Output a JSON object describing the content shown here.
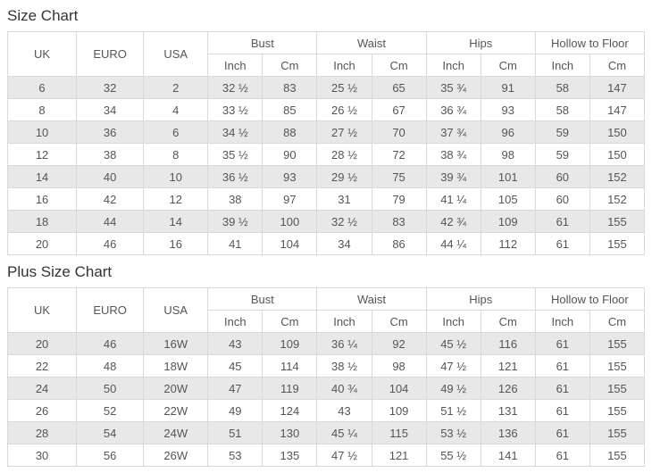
{
  "size_chart": {
    "title": "Size Chart",
    "header": {
      "uk": "UK",
      "euro": "EURO",
      "usa": "USA",
      "groups": [
        "Bust",
        "Waist",
        "Hips",
        "Hollow to Floor"
      ],
      "units": [
        "Inch",
        "Cm"
      ]
    },
    "rows": [
      [
        "6",
        "32",
        "2",
        "32 ½",
        "83",
        "25 ½",
        "65",
        "35 ¾",
        "91",
        "58",
        "147"
      ],
      [
        "8",
        "34",
        "4",
        "33 ½",
        "85",
        "26 ½",
        "67",
        "36 ¾",
        "93",
        "58",
        "147"
      ],
      [
        "10",
        "36",
        "6",
        "34 ½",
        "88",
        "27 ½",
        "70",
        "37 ¾",
        "96",
        "59",
        "150"
      ],
      [
        "12",
        "38",
        "8",
        "35 ½",
        "90",
        "28 ½",
        "72",
        "38 ¾",
        "98",
        "59",
        "150"
      ],
      [
        "14",
        "40",
        "10",
        "36 ½",
        "93",
        "29 ½",
        "75",
        "39 ¾",
        "101",
        "60",
        "152"
      ],
      [
        "16",
        "42",
        "12",
        "38",
        "97",
        "31",
        "79",
        "41 ¼",
        "105",
        "60",
        "152"
      ],
      [
        "18",
        "44",
        "14",
        "39 ½",
        "100",
        "32 ½",
        "83",
        "42 ¾",
        "109",
        "61",
        "155"
      ],
      [
        "20",
        "46",
        "16",
        "41",
        "104",
        "34",
        "86",
        "44 ¼",
        "112",
        "61",
        "155"
      ]
    ]
  },
  "plus_size_chart": {
    "title": "Plus Size Chart",
    "header": {
      "uk": "UK",
      "euro": "EURO",
      "usa": "USA",
      "groups": [
        "Bust",
        "Waist",
        "Hips",
        "Hollow to Floor"
      ],
      "units": [
        "Inch",
        "Cm"
      ]
    },
    "rows": [
      [
        "20",
        "46",
        "16W",
        "43",
        "109",
        "36 ¼",
        "92",
        "45 ½",
        "116",
        "61",
        "155"
      ],
      [
        "22",
        "48",
        "18W",
        "45",
        "114",
        "38 ½",
        "98",
        "47 ½",
        "121",
        "61",
        "155"
      ],
      [
        "24",
        "50",
        "20W",
        "47",
        "119",
        "40 ¾",
        "104",
        "49 ½",
        "126",
        "61",
        "155"
      ],
      [
        "26",
        "52",
        "22W",
        "49",
        "124",
        "43",
        "109",
        "51 ½",
        "131",
        "61",
        "155"
      ],
      [
        "28",
        "54",
        "24W",
        "51",
        "130",
        "45 ¼",
        "115",
        "53 ½",
        "136",
        "61",
        "155"
      ],
      [
        "30",
        "56",
        "26W",
        "53",
        "135",
        "47 ½",
        "121",
        "55 ½",
        "141",
        "61",
        "155"
      ]
    ]
  },
  "colors": {
    "row_stripe": "#e8e8e8",
    "border": "#d9d9d9",
    "text": "#555555",
    "title_text": "#333333"
  }
}
